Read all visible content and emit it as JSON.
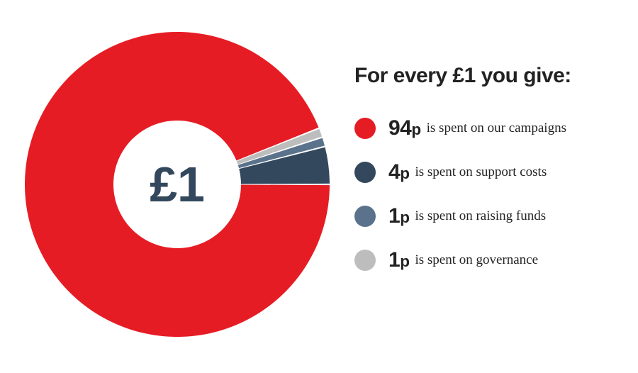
{
  "chart": {
    "type": "donut",
    "center_label": "£1",
    "center_fontsize": 70,
    "center_color": "#33485d",
    "outer_radius": 215,
    "inner_radius": 90,
    "svg_size": 440,
    "slice_gap_deg": 0.6,
    "start_angle_deg": 0,
    "background_color": "transparent",
    "slices": [
      {
        "value": 94,
        "color": "#e61c24"
      },
      {
        "value": 4,
        "color": "#33485d"
      },
      {
        "value": 1,
        "color": "#5b728c"
      },
      {
        "value": 1,
        "color": "#bdbdbd"
      }
    ]
  },
  "legend": {
    "title": "For every £1 you give:",
    "title_fontsize": 30,
    "title_color": "#222222",
    "swatch_size": 30,
    "amount_fontsize": 30,
    "amount_color": "#222222",
    "desc_fontsize": 19,
    "desc_color": "#222222",
    "items": [
      {
        "amount_num": "94",
        "amount_unit": "p",
        "desc": "is spent on our campaigns",
        "swatch": "#e61c24"
      },
      {
        "amount_num": "4",
        "amount_unit": "p",
        "desc": "is spent on support costs",
        "swatch": "#33485d"
      },
      {
        "amount_num": "1",
        "amount_unit": "p",
        "desc": "is spent on raising funds",
        "swatch": "#5b728c"
      },
      {
        "amount_num": "1",
        "amount_unit": "p",
        "desc": "is spent on governance",
        "swatch": "#bdbdbd"
      }
    ]
  }
}
